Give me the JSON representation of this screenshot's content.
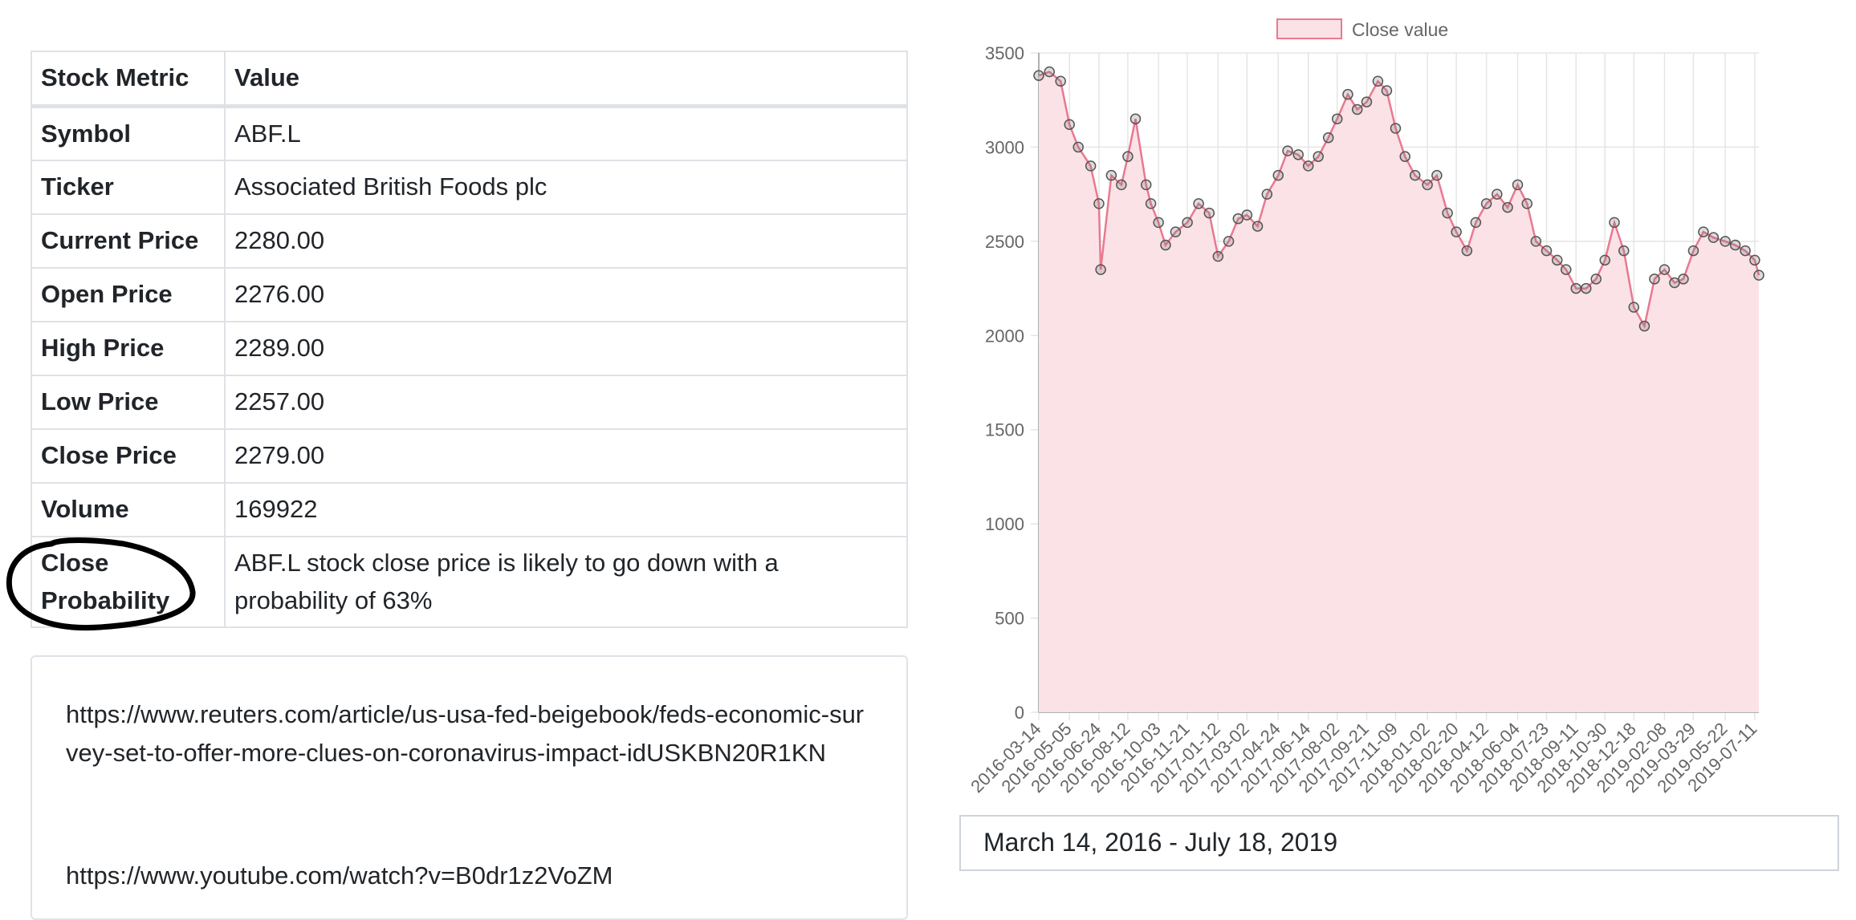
{
  "table": {
    "headers": [
      "Stock Metric",
      "Value"
    ],
    "rows": [
      {
        "metric": "Symbol",
        "value": "ABF.L"
      },
      {
        "metric": "Ticker",
        "value": "Associated British Foods plc"
      },
      {
        "metric": "Current Price",
        "value": "2280.00"
      },
      {
        "metric": "Open Price",
        "value": "2276.00"
      },
      {
        "metric": "High Price",
        "value": "2289.00"
      },
      {
        "metric": "Low Price",
        "value": "2257.00"
      },
      {
        "metric": "Close Price",
        "value": "2279.00"
      },
      {
        "metric": "Volume",
        "value": "169922"
      },
      {
        "metric": "Close Probability",
        "value": "ABF.L stock close price is likely to go down with a probability of 63%"
      }
    ]
  },
  "news": {
    "links": [
      "https://www.reuters.com/article/us-usa-fed-beigebook/feds-economic-survey-set-to-offer-more-clues-on-coronavirus-impact-idUSKBN20R1KN",
      "https://www.youtube.com/watch?v=B0dr1z2VoZM"
    ]
  },
  "date_range": "March 14, 2016 - July 18, 2019",
  "chart_data": {
    "type": "area",
    "legend": "Close value",
    "legend_position": "top",
    "colors": {
      "fill": "#fbe2e6",
      "line": "#e8798f",
      "point": "#555555",
      "grid": "#e5e5e5"
    },
    "ylim": [
      0,
      3500
    ],
    "yticks": [
      0,
      500,
      1000,
      1500,
      2000,
      2500,
      3000,
      3500
    ],
    "grid": true,
    "x_tick_labels": [
      "2016-03-14",
      "2016-05-05",
      "2016-06-24",
      "2016-08-12",
      "2016-10-03",
      "2016-11-21",
      "2017-01-12",
      "2017-03-02",
      "2017-04-24",
      "2017-06-14",
      "2017-08-02",
      "2017-09-21",
      "2017-11-09",
      "2018-01-02",
      "2018-02-20",
      "2018-04-12",
      "2018-06-04",
      "2018-07-23",
      "2018-09-11",
      "2018-10-30",
      "2018-12-18",
      "2019-02-08",
      "2019-03-29",
      "2019-05-22",
      "2019-07-11"
    ],
    "x": [
      "2016-03-14",
      "2016-04-01",
      "2016-04-20",
      "2016-05-05",
      "2016-05-20",
      "2016-06-10",
      "2016-06-24",
      "2016-06-27",
      "2016-07-15",
      "2016-08-01",
      "2016-08-12",
      "2016-08-25",
      "2016-09-12",
      "2016-09-20",
      "2016-10-03",
      "2016-10-15",
      "2016-11-01",
      "2016-11-21",
      "2016-12-10",
      "2016-12-28",
      "2017-01-12",
      "2017-01-30",
      "2017-02-15",
      "2017-03-02",
      "2017-03-20",
      "2017-04-05",
      "2017-04-24",
      "2017-05-10",
      "2017-05-28",
      "2017-06-14",
      "2017-07-01",
      "2017-07-18",
      "2017-08-02",
      "2017-08-20",
      "2017-09-05",
      "2017-09-21",
      "2017-10-10",
      "2017-10-25",
      "2017-11-09",
      "2017-11-25",
      "2017-12-12",
      "2018-01-02",
      "2018-01-18",
      "2018-02-05",
      "2018-02-20",
      "2018-03-10",
      "2018-03-25",
      "2018-04-12",
      "2018-04-30",
      "2018-05-18",
      "2018-06-04",
      "2018-06-20",
      "2018-07-05",
      "2018-07-23",
      "2018-08-10",
      "2018-08-25",
      "2018-09-11",
      "2018-09-28",
      "2018-10-15",
      "2018-10-30",
      "2018-11-15",
      "2018-12-01",
      "2018-12-18",
      "2019-01-05",
      "2019-01-22",
      "2019-02-08",
      "2019-02-25",
      "2019-03-12",
      "2019-03-29",
      "2019-04-15",
      "2019-05-02",
      "2019-05-22",
      "2019-06-08",
      "2019-06-25",
      "2019-07-11",
      "2019-07-18"
    ],
    "values": [
      3380,
      3400,
      3350,
      3120,
      3000,
      2900,
      2700,
      2350,
      2850,
      2800,
      2950,
      3150,
      2800,
      2700,
      2600,
      2480,
      2550,
      2600,
      2700,
      2650,
      2420,
      2500,
      2620,
      2640,
      2580,
      2750,
      2850,
      2980,
      2960,
      2900,
      2950,
      3050,
      3150,
      3280,
      3200,
      3240,
      3350,
      3300,
      3100,
      2950,
      2850,
      2800,
      2850,
      2650,
      2550,
      2450,
      2600,
      2700,
      2750,
      2680,
      2800,
      2700,
      2500,
      2450,
      2400,
      2350,
      2250,
      2250,
      2300,
      2400,
      2600,
      2450,
      2150,
      2050,
      2300,
      2350,
      2280,
      2300,
      2450,
      2550,
      2520,
      2500,
      2480,
      2450,
      2400,
      2320
    ]
  }
}
